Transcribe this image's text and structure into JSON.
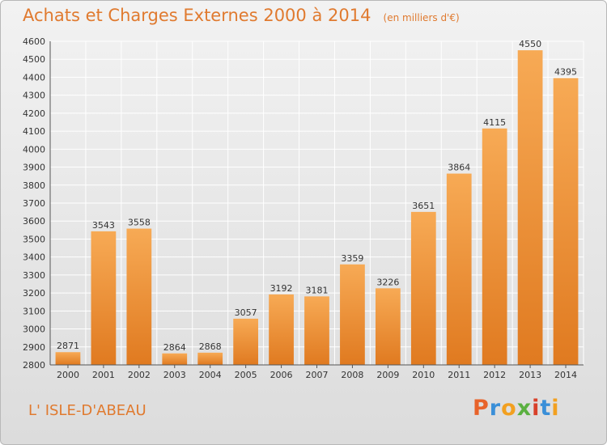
{
  "header": {
    "title": "Achats et Charges Externes 2000 à 2014",
    "subtitle": "(en milliers d'€)"
  },
  "footer": {
    "location": "L' ISLE-D'ABEAU",
    "logo_text": "Proxiti",
    "logo_colors": [
      "#e8632a",
      "#3a8fd8",
      "#f2a020",
      "#5ab040",
      "#d8402a",
      "#3a8fd8",
      "#f2a020"
    ]
  },
  "colors": {
    "bar_light": "#f7aa55",
    "bar_dark": "#e07a20",
    "grid": "#ffffff",
    "text": "#333333",
    "accent": "#e07a2f"
  },
  "chart_data": {
    "type": "bar",
    "title": "Achats et Charges Externes 2000 à 2014",
    "subtitle": "(en milliers d'€)",
    "xlabel": "",
    "ylabel": "",
    "categories": [
      "2000",
      "2001",
      "2002",
      "2003",
      "2004",
      "2005",
      "2006",
      "2007",
      "2008",
      "2009",
      "2010",
      "2011",
      "2012",
      "2013",
      "2014"
    ],
    "values": [
      2871,
      3543,
      3558,
      2864,
      2868,
      3057,
      3192,
      3181,
      3359,
      3226,
      3651,
      3864,
      4115,
      4550,
      4395
    ],
    "ylim": [
      2800,
      4600
    ],
    "yticks": [
      2800,
      2900,
      3000,
      3100,
      3200,
      3300,
      3400,
      3500,
      3600,
      3700,
      3800,
      3900,
      4000,
      4100,
      4200,
      4300,
      4400,
      4500,
      4600
    ],
    "grid": true,
    "legend": "none"
  }
}
